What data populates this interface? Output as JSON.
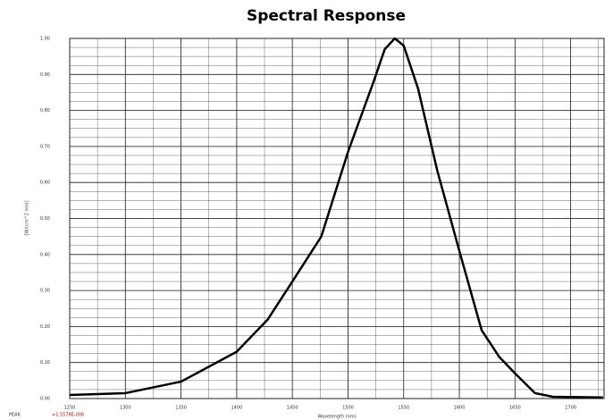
{
  "chart_data": {
    "type": "line",
    "title": "Spectral Response",
    "xlabel": "Wavelength (nm)",
    "ylabel": "[W/(cm^2 nm)]",
    "annotations": [
      "PEAK",
      "=1.5578E-006"
    ],
    "x": [
      1250,
      1300,
      1350,
      1400,
      1428,
      1450,
      1476,
      1500,
      1523,
      1533,
      1542,
      1550,
      1563,
      1580,
      1600,
      1620,
      1636,
      1650,
      1668,
      1684,
      1729
    ],
    "series": [
      {
        "name": "Spectral Response",
        "color": "#000000",
        "values": [
          0.01,
          0.015,
          0.047,
          0.13,
          0.22,
          0.325,
          0.45,
          0.685,
          0.88,
          0.97,
          1.0,
          0.98,
          0.86,
          0.635,
          0.41,
          0.19,
          0.115,
          0.07,
          0.015,
          0.005,
          0.003
        ]
      }
    ],
    "xlim": [
      1250,
      1730
    ],
    "ylim": [
      0,
      1
    ],
    "xticks": [
      1250,
      1300,
      1350,
      1400,
      1450,
      1500,
      1550,
      1600,
      1650,
      1700
    ],
    "yticks": [
      {
        "value": 0,
        "label": "0.00"
      },
      {
        "value": 0.1,
        "label": "0.10"
      },
      {
        "value": 0.2,
        "label": "0.20"
      },
      {
        "value": 0.3,
        "label": "0.30"
      },
      {
        "value": 0.4,
        "label": "0.40"
      },
      {
        "value": 0.5,
        "label": "0.50"
      },
      {
        "value": 0.6,
        "label": "0.60"
      },
      {
        "value": 0.7,
        "label": "0.70"
      },
      {
        "value": 0.8,
        "label": "0.80"
      },
      {
        "value": 0.9,
        "label": "0.90"
      },
      {
        "value": 1,
        "label": "1.00"
      }
    ],
    "grid": true
  }
}
